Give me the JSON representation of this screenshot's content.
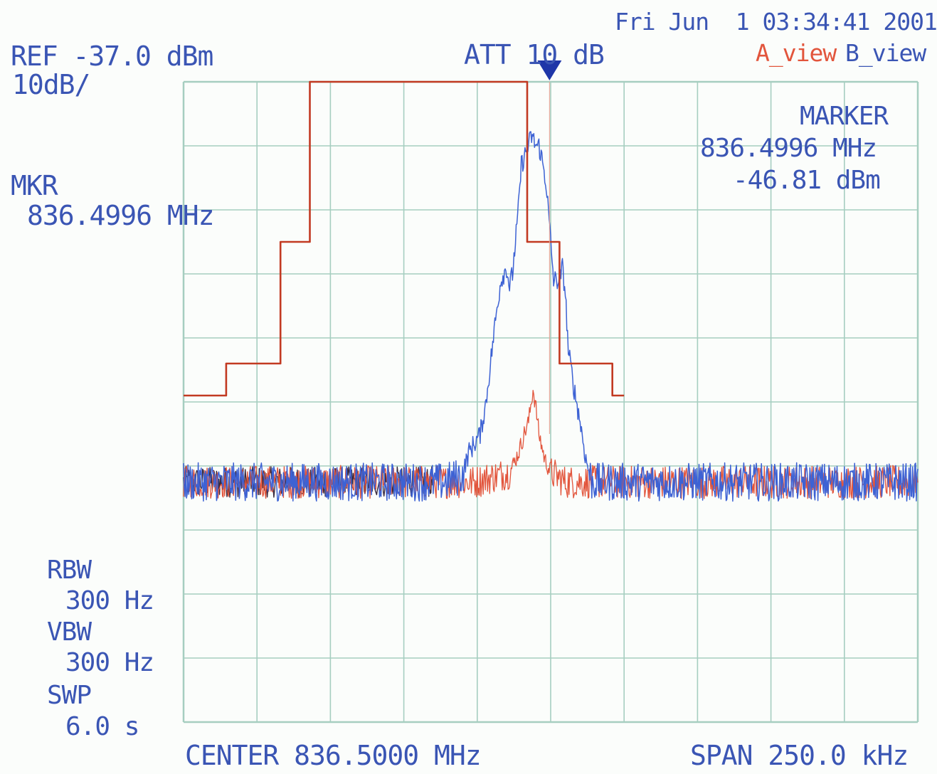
{
  "header": {
    "timestamp": "Fri Jun  1 03:34:41 2001",
    "ref_level": "REF -37.0 dBm",
    "scale": "10dB/",
    "attenuation": "ATT 10 dB",
    "view_a": "A_view",
    "view_b": "B_view"
  },
  "marker_left": {
    "label": "MKR",
    "freq": "836.4996 MHz"
  },
  "marker_right": {
    "label": "MARKER",
    "freq": "836.4996 MHz",
    "level": "-46.81 dBm"
  },
  "settings": {
    "rbw_label": "RBW",
    "rbw_value": "300 Hz",
    "vbw_label": "VBW",
    "vbw_value": "300 Hz",
    "swp_label": "SWP",
    "swp_value": "6.0 s"
  },
  "footer": {
    "center": "CENTER 836.5000 MHz",
    "span": "SPAN 250.0 kHz"
  },
  "colors": {
    "background": "#fbfdfb",
    "grid": "#a6cec0",
    "text": "#3a55b4",
    "trace_blue": "#3d62d4",
    "trace_red": "#e2553c",
    "mask_red": "#c23a22",
    "trace_dark": "#3a2a3e",
    "marker": "#1f36a8"
  },
  "chart_data": {
    "type": "line",
    "x_unit": "kHz offset from center",
    "y_unit": "dBm",
    "xlim": [
      -125,
      125
    ],
    "ylim": [
      -137,
      -37
    ],
    "grid": true,
    "grid_divisions": {
      "x": 10,
      "y": 10
    },
    "marker": {
      "x": -0.4,
      "y": -46.81
    },
    "series": [
      {
        "kind": "mask",
        "color": "#c23a22",
        "points": [
          [
            -125,
            -86
          ],
          [
            -110.5,
            -86
          ],
          [
            -110.5,
            -81
          ],
          [
            -92,
            -81
          ],
          [
            -92,
            -62
          ],
          [
            -82,
            -62
          ],
          [
            -82,
            -37
          ],
          [
            -8,
            -37
          ],
          [
            -8,
            -62
          ],
          [
            3,
            -62
          ],
          [
            3,
            -81
          ],
          [
            21,
            -81
          ],
          [
            21,
            -86
          ],
          [
            25,
            -86
          ]
        ]
      },
      {
        "kind": "signal",
        "color": "#3d62d4",
        "noise_floor": -99.5,
        "points": [
          [
            -125,
            -99.5
          ],
          [
            -36,
            -99.5
          ],
          [
            -30,
            -98.5
          ],
          [
            -28,
            -95
          ],
          [
            -24,
            -92
          ],
          [
            -22,
            -87
          ],
          [
            -19,
            -75
          ],
          [
            -17,
            -68
          ],
          [
            -15,
            -66
          ],
          [
            -14,
            -69
          ],
          [
            -13,
            -67
          ],
          [
            -11,
            -57
          ],
          [
            -10,
            -50
          ],
          [
            -8,
            -47.5
          ],
          [
            -6.5,
            -45.5
          ],
          [
            -5,
            -47
          ],
          [
            -4,
            -47
          ],
          [
            -3,
            -49
          ],
          [
            -1.5,
            -53
          ],
          [
            0,
            -62
          ],
          [
            1,
            -68
          ],
          [
            3,
            -68
          ],
          [
            4,
            -66
          ],
          [
            5,
            -70
          ],
          [
            6,
            -79
          ],
          [
            8,
            -85
          ],
          [
            10,
            -90
          ],
          [
            12,
            -96
          ],
          [
            14,
            -99.5
          ],
          [
            25,
            -99.5
          ]
        ]
      },
      {
        "kind": "reference",
        "color": "#e2553c",
        "noise_floor": -99.5,
        "points": [
          [
            -125,
            -99.5
          ],
          [
            -26,
            -99.5
          ],
          [
            -14,
            -98
          ],
          [
            -11,
            -95
          ],
          [
            -9,
            -92
          ],
          [
            -7.5,
            -90
          ],
          [
            -6,
            -85
          ],
          [
            -5,
            -88
          ],
          [
            -4,
            -92
          ],
          [
            -2,
            -96
          ],
          [
            0,
            -98
          ],
          [
            5,
            -99.5
          ],
          [
            25,
            -99.5
          ]
        ]
      }
    ]
  }
}
